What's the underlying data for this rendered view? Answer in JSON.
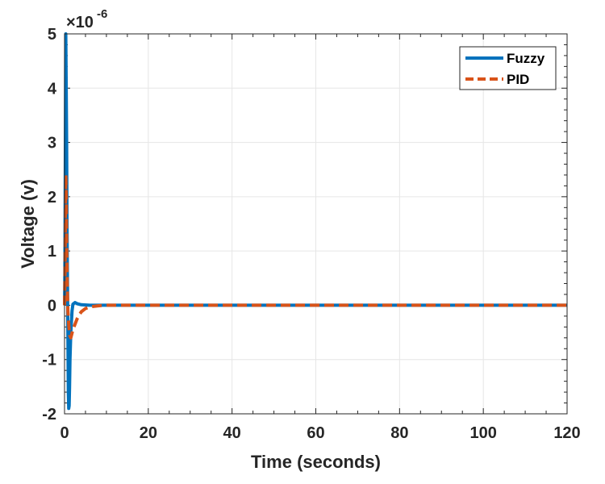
{
  "chart_data": {
    "type": "line",
    "title": "",
    "xlabel": "Time (seconds)",
    "ylabel": "Voltage (v)",
    "xlim": [
      0,
      120
    ],
    "ylim": [
      -2,
      5
    ],
    "y_exponent_label": "×10",
    "y_exponent_power": "-6",
    "y_scale_factor": 1e-06,
    "grid": true,
    "legend_position": "top-right",
    "x_ticks": [
      0,
      20,
      40,
      60,
      80,
      100,
      120
    ],
    "x_tick_labels": [
      "0",
      "20",
      "40",
      "60",
      "80",
      "100",
      "120"
    ],
    "y_ticks": [
      -2,
      -1,
      0,
      1,
      2,
      3,
      4,
      5
    ],
    "y_tick_labels": [
      "-2",
      "-1",
      "0",
      "1",
      "2",
      "3",
      "4",
      "5"
    ],
    "series": [
      {
        "name": "Fuzzy",
        "color": "#0072BD",
        "style": "solid",
        "x": [
          0,
          0.05,
          0.1,
          0.2,
          0.3,
          0.5,
          0.6,
          0.7,
          0.8,
          0.9,
          1.0,
          1.1,
          1.2,
          1.3,
          1.5,
          1.8,
          2.0,
          2.5,
          3,
          4,
          6,
          10,
          20,
          40,
          60,
          80,
          100,
          120
        ],
        "y": [
          0,
          0.3,
          1.0,
          3.0,
          5.0,
          3.0,
          1.5,
          0.5,
          -0.5,
          -1.6,
          -1.9,
          -1.85,
          -1.5,
          -1.0,
          -0.5,
          -0.1,
          0.02,
          0.05,
          0.03,
          0.01,
          0,
          0,
          0,
          0,
          0,
          0,
          0,
          0
        ]
      },
      {
        "name": "PID",
        "color": "#D95319",
        "style": "dashed",
        "x": [
          0,
          0.1,
          0.2,
          0.3,
          0.4,
          0.5,
          0.6,
          0.7,
          0.8,
          1.0,
          1.2,
          1.5,
          2.0,
          2.5,
          3,
          3.5,
          4,
          5,
          6,
          8,
          10,
          20,
          40,
          60,
          80,
          100,
          120
        ],
        "y": [
          0,
          0.5,
          1.5,
          2.4,
          2.0,
          1.2,
          0.6,
          0.2,
          -0.1,
          -0.35,
          -0.55,
          -0.6,
          -0.45,
          -0.35,
          -0.25,
          -0.18,
          -0.12,
          -0.06,
          -0.03,
          -0.01,
          0,
          0,
          0,
          0,
          0,
          0,
          0
        ]
      }
    ]
  }
}
